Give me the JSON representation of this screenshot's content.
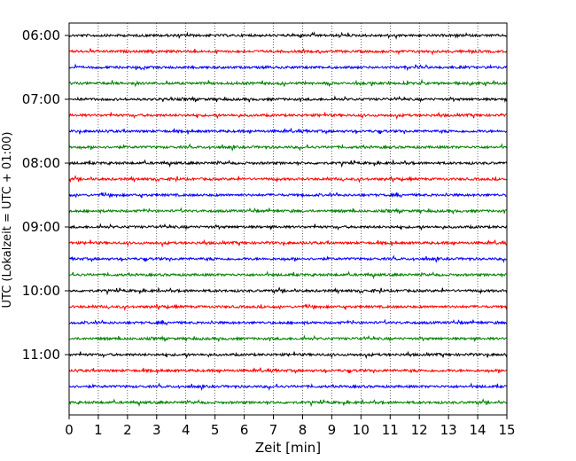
{
  "chart_data": {
    "type": "line",
    "title": "",
    "xlabel": "Zeit  [min]",
    "ylabel": "UTC (Lokalzeit = UTC + 01:00)",
    "xlim": [
      0,
      15
    ],
    "x_ticks": [
      "0",
      "1",
      "2",
      "3",
      "4",
      "5",
      "6",
      "7",
      "8",
      "9",
      "10",
      "11",
      "12",
      "13",
      "14",
      "15"
    ],
    "y_ticks": [
      "06:00",
      "07:00",
      "08:00",
      "09:00",
      "10:00",
      "11:00"
    ],
    "grid_x": "dotted vertical lines at each minute",
    "trace_interval_min": 15,
    "trace_colors": [
      "#000000",
      "#ff0000",
      "#0000ff",
      "#008000"
    ],
    "traces": [
      {
        "start": "06:00",
        "color": "#000000"
      },
      {
        "start": "06:15",
        "color": "#ff0000"
      },
      {
        "start": "06:30",
        "color": "#0000ff"
      },
      {
        "start": "06:45",
        "color": "#008000"
      },
      {
        "start": "07:00",
        "color": "#000000"
      },
      {
        "start": "07:15",
        "color": "#ff0000"
      },
      {
        "start": "07:30",
        "color": "#0000ff"
      },
      {
        "start": "07:45",
        "color": "#008000"
      },
      {
        "start": "08:00",
        "color": "#000000"
      },
      {
        "start": "08:15",
        "color": "#ff0000"
      },
      {
        "start": "08:30",
        "color": "#0000ff"
      },
      {
        "start": "08:45",
        "color": "#008000"
      },
      {
        "start": "09:00",
        "color": "#000000"
      },
      {
        "start": "09:15",
        "color": "#ff0000"
      },
      {
        "start": "09:30",
        "color": "#0000ff"
      },
      {
        "start": "09:45",
        "color": "#008000"
      },
      {
        "start": "10:00",
        "color": "#000000"
      },
      {
        "start": "10:15",
        "color": "#ff0000"
      },
      {
        "start": "10:30",
        "color": "#0000ff"
      },
      {
        "start": "10:45",
        "color": "#008000"
      },
      {
        "start": "11:00",
        "color": "#000000"
      },
      {
        "start": "11:15",
        "color": "#ff0000"
      },
      {
        "start": "11:30",
        "color": "#0000ff"
      },
      {
        "start": "11:45",
        "color": "#008000"
      }
    ]
  }
}
